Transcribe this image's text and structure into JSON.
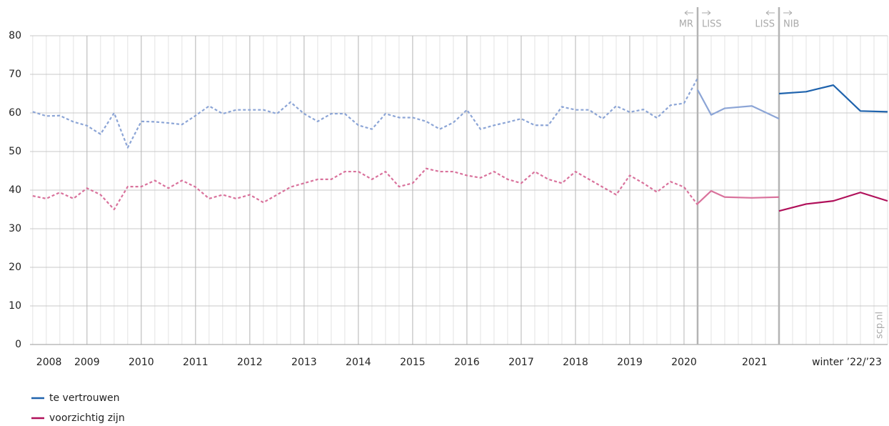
{
  "chart_data": {
    "type": "line",
    "xlim": [
      2007.95,
      2023.75
    ],
    "ylim": [
      0,
      80
    ],
    "yticks": [
      0,
      10,
      20,
      30,
      40,
      50,
      60,
      70,
      80
    ],
    "xticks": [
      {
        "value": 2008.3,
        "label": "2008"
      },
      2009,
      2010,
      2011,
      2012,
      2013,
      2014,
      2015,
      2016,
      2017,
      2018,
      2019,
      2020,
      {
        "value": 2021.3,
        "label": "2021"
      },
      {
        "value": 2023,
        "label": "winter ’22/’23"
      }
    ],
    "grid": true,
    "annotations": [
      {
        "x": 2020.25,
        "left": "MR",
        "right": "LISS"
      },
      {
        "x": 2021.75,
        "left": "LISS",
        "right": "NIB"
      }
    ],
    "source": "scp.nl",
    "series": [
      {
        "name": "te vertrouwen",
        "color": "#1f63ad",
        "segments": [
          {
            "color": "#8ca5d6",
            "dashed": true,
            "x": [
              2008,
              2008.25,
              2008.5,
              2008.75,
              2009,
              2009.25,
              2009.5,
              2009.75,
              2010,
              2010.25,
              2010.5,
              2010.75,
              2011,
              2011.25,
              2011.5,
              2011.75,
              2012,
              2012.25,
              2012.5,
              2012.75,
              2013,
              2013.25,
              2013.5,
              2013.75,
              2014,
              2014.25,
              2014.5,
              2014.75,
              2015,
              2015.25,
              2015.5,
              2015.75,
              2016,
              2016.25,
              2016.5,
              2016.75,
              2017,
              2017.25,
              2017.5,
              2017.75,
              2018,
              2018.25,
              2018.5,
              2018.75,
              2019,
              2019.25,
              2019.5,
              2019.75,
              2020,
              2020.25
            ],
            "values": [
              60.3,
              59.2,
              59.3,
              57.7,
              56.7,
              54.5,
              60,
              51,
              57.8,
              57.7,
              57.4,
              57,
              59.3,
              61.8,
              59.8,
              60.8,
              60.8,
              60.8,
              59.8,
              62.8,
              59.8,
              57.8,
              59.8,
              59.8,
              56.8,
              55.8,
              59.8,
              58.8,
              58.8,
              57.8,
              55.8,
              57.5,
              60.8,
              55.8,
              56.8,
              57.6,
              58.5,
              56.8,
              56.8,
              61.6,
              60.8,
              60.8,
              58.5,
              61.8,
              60.2,
              60.9,
              58.7,
              62,
              62.5,
              69
            ]
          },
          {
            "color": "#8ca5d6",
            "dashed": false,
            "x": [
              2020.25,
              2020.5,
              2020.75,
              2021.25,
              2021.75
            ],
            "values": [
              66,
              59.5,
              61.2,
              61.8,
              58.5
            ]
          },
          {
            "color": "#1f63ad",
            "dashed": false,
            "x": [
              2021.75,
              2022.25,
              2022.75,
              2023.25,
              2023.75
            ],
            "values": [
              65,
              65.5,
              67.2,
              60.5,
              60.3
            ]
          }
        ]
      },
      {
        "name": "voorzichtig zijn",
        "color": "#b0105a",
        "segments": [
          {
            "color": "#d9729c",
            "dashed": true,
            "x": [
              2008,
              2008.25,
              2008.5,
              2008.75,
              2009,
              2009.25,
              2009.5,
              2009.75,
              2010,
              2010.25,
              2010.5,
              2010.75,
              2011,
              2011.25,
              2011.5,
              2011.75,
              2012,
              2012.25,
              2012.5,
              2012.75,
              2013,
              2013.25,
              2013.5,
              2013.75,
              2014,
              2014.25,
              2014.5,
              2014.75,
              2015,
              2015.25,
              2015.5,
              2015.75,
              2016,
              2016.25,
              2016.5,
              2016.75,
              2017,
              2017.25,
              2017.5,
              2017.75,
              2018,
              2018.25,
              2018.5,
              2018.75,
              2019,
              2019.25,
              2019.5,
              2019.75,
              2020,
              2020.25
            ],
            "values": [
              38.5,
              37.8,
              39.4,
              37.8,
              40.5,
              38.8,
              35,
              40.9,
              40.9,
              42.5,
              40.5,
              42.5,
              40.8,
              37.8,
              38.8,
              37.8,
              38.8,
              36.8,
              38.8,
              40.8,
              41.8,
              42.8,
              42.8,
              44.8,
              44.8,
              42.8,
              44.8,
              40.9,
              41.8,
              45.6,
              44.8,
              44.8,
              43.8,
              43.2,
              44.8,
              42.8,
              41.8,
              44.8,
              42.8,
              41.8,
              44.8,
              42.8,
              40.8,
              38.8,
              43.8,
              41.8,
              39.5,
              42.2,
              40.8,
              36.2
            ]
          },
          {
            "color": "#d9729c",
            "dashed": false,
            "x": [
              2020.25,
              2020.5,
              2020.75,
              2021.25,
              2021.75
            ],
            "values": [
              36.5,
              39.8,
              38.2,
              38,
              38.2
            ]
          },
          {
            "color": "#b0105a",
            "dashed": false,
            "x": [
              2021.75,
              2022.25,
              2022.75,
              2023.25,
              2023.75
            ],
            "values": [
              34.6,
              36.4,
              37.2,
              39.4,
              37.2
            ]
          }
        ]
      }
    ]
  }
}
